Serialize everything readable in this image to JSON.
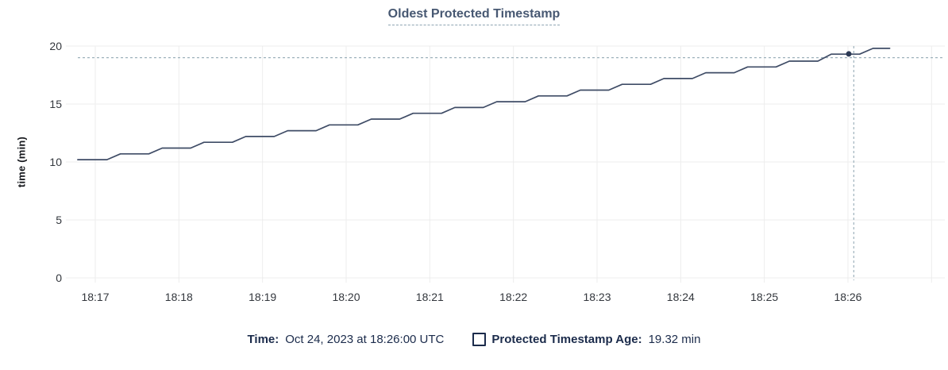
{
  "colors": {
    "title": "#475872",
    "title_underline": "#8ea4b3",
    "line": "#3f4c66",
    "hover_dot": "#2c3a55",
    "crosshair": "#9eb2bc",
    "grid": "#ededed",
    "tick_text": "#33373d",
    "axis_title_text": "#17191e",
    "legend_text": "#1b2b4b"
  },
  "chart_data": {
    "type": "line",
    "title": "Oldest Protected Timestamp",
    "ylabel": "time (min)",
    "x_axis": {
      "tick_labels": [
        "18:17",
        "18:18",
        "18:19",
        "18:20",
        "18:21",
        "18:22",
        "18:23",
        "18:24",
        "18:25",
        "18:26"
      ],
      "unlabeled_trailing_gridlines": 1
    },
    "y_axis": {
      "tick_labels": [
        "0",
        "5",
        "10",
        "15",
        "20"
      ],
      "range": [
        0,
        20
      ]
    },
    "grid": true,
    "series": [
      {
        "name": "Protected Timestamp Age",
        "unit": "min",
        "x_offset_unit": "minutes after 18:17",
        "points": [
          [
            -0.21,
            10.2
          ],
          [
            0.14,
            10.2
          ],
          [
            0.3,
            10.7
          ],
          [
            0.64,
            10.7
          ],
          [
            0.8,
            11.2
          ],
          [
            1.14,
            11.2
          ],
          [
            1.3,
            11.7
          ],
          [
            1.64,
            11.7
          ],
          [
            1.8,
            12.2
          ],
          [
            2.14,
            12.2
          ],
          [
            2.3,
            12.7
          ],
          [
            2.64,
            12.7
          ],
          [
            2.8,
            13.2
          ],
          [
            3.14,
            13.2
          ],
          [
            3.3,
            13.7
          ],
          [
            3.64,
            13.7
          ],
          [
            3.8,
            14.2
          ],
          [
            4.14,
            14.2
          ],
          [
            4.3,
            14.7
          ],
          [
            4.64,
            14.7
          ],
          [
            4.8,
            15.2
          ],
          [
            5.14,
            15.2
          ],
          [
            5.3,
            15.7
          ],
          [
            5.64,
            15.7
          ],
          [
            5.8,
            16.2
          ],
          [
            6.14,
            16.2
          ],
          [
            6.3,
            16.7
          ],
          [
            6.64,
            16.7
          ],
          [
            6.8,
            17.2
          ],
          [
            7.14,
            17.2
          ],
          [
            7.3,
            17.7
          ],
          [
            7.64,
            17.7
          ],
          [
            7.8,
            18.2
          ],
          [
            8.14,
            18.2
          ],
          [
            8.3,
            18.7
          ],
          [
            8.64,
            18.7
          ],
          [
            8.8,
            19.3
          ],
          [
            9.14,
            19.3
          ],
          [
            9.3,
            19.8
          ],
          [
            9.5,
            19.8
          ]
        ]
      }
    ],
    "hover": {
      "point": {
        "t": 9.01,
        "value": 19.32
      },
      "crosshair": {
        "t": 9.07,
        "value": 19.0
      }
    }
  },
  "legend": {
    "time_label": "Time:",
    "time_value": "Oct 24, 2023 at 18:26:00 UTC",
    "series_label": "Protected Timestamp Age:",
    "series_value": "19.32 min"
  }
}
